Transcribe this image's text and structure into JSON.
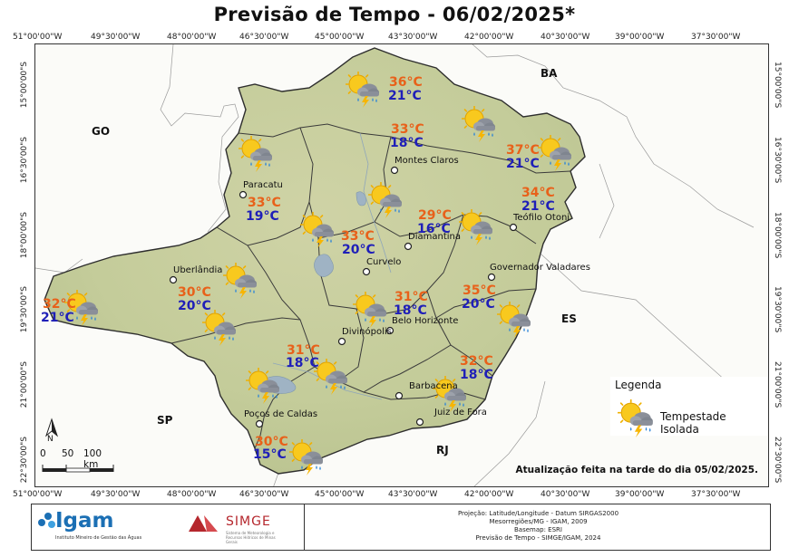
{
  "title": "Previsão de Tempo - 06/02/2025*",
  "coords": {
    "lon": [
      "51°00'00\"W",
      "49°30'00\"W",
      "48°00'00\"W",
      "46°30'00\"W",
      "45°00'00\"W",
      "43°30'00\"W",
      "42°00'00\"W",
      "40°30'00\"W",
      "39°00'00\"W",
      "37°30'00\"W"
    ],
    "lat": [
      "15°00'00\"S",
      "16°30'00\"S",
      "18°00'00\"S",
      "19°30'00\"S",
      "21°00'00\"S",
      "22°30'00\"S"
    ]
  },
  "states": {
    "go": "GO",
    "ba": "BA",
    "es": "ES",
    "sp": "SP",
    "rj": "RJ"
  },
  "cities": {
    "montes_claros": "Montes Claros",
    "paracatu": "Paracatu",
    "diamantina": "Diamantina",
    "teofilo_otoni": "Teófilo Otoni",
    "uberlandia": "Uberlândia",
    "curvelo": "Curvelo",
    "governador_valadares": "Governador Valadares",
    "belo_horizonte": "Belo Horizonte",
    "divinopolis": "Divinópolis",
    "barbacena": "Barbacena",
    "juiz_de_fora": "Juiz de Fora",
    "pocos_de_caldas": "Poços de Caldas"
  },
  "forecasts": [
    {
      "region": "norte",
      "max": "36°C",
      "min": "21°C",
      "icon": "isolated-storm-icon"
    },
    {
      "region": "norte-centro",
      "max": "33°C",
      "min": "18°C",
      "icon": "isolated-storm-icon"
    },
    {
      "region": "jequitinhonha-norte",
      "max": "37°C",
      "min": "21°C",
      "icon": "isolated-storm-icon"
    },
    {
      "region": "noroeste",
      "max": "33°C",
      "min": "19°C",
      "icon": "isolated-storm-icon"
    },
    {
      "region": "mucuri",
      "max": "34°C",
      "min": "21°C",
      "icon": "isolated-storm-icon"
    },
    {
      "region": "jequitinhonha",
      "max": "29°C",
      "min": "16°C",
      "icon": "isolated-storm-icon"
    },
    {
      "region": "central",
      "max": "33°C",
      "min": "20°C",
      "icon": "isolated-storm-icon"
    },
    {
      "region": "triangulo",
      "max": "30°C",
      "min": "20°C",
      "icon": "isolated-storm-icon"
    },
    {
      "region": "triangulo-oeste",
      "max": "32°C",
      "min": "21°C",
      "icon": "isolated-storm-icon"
    },
    {
      "region": "metropolitana",
      "max": "31°C",
      "min": "18°C",
      "icon": "isolated-storm-icon"
    },
    {
      "region": "vale-rio-doce",
      "max": "35°C",
      "min": "20°C",
      "icon": "isolated-storm-icon"
    },
    {
      "region": "oeste",
      "max": "31°C",
      "min": "18°C",
      "icon": "isolated-storm-icon"
    },
    {
      "region": "zona-da-mata",
      "max": "32°C",
      "min": "18°C",
      "icon": "isolated-storm-icon"
    },
    {
      "region": "sul",
      "max": "30°C",
      "min": "15°C",
      "icon": "isolated-storm-icon"
    }
  ],
  "legend": {
    "title": "Legenda",
    "item": "Tempestade Isolada",
    "icon": "isolated-storm-icon"
  },
  "scale": {
    "ticks": [
      "0",
      "50",
      "100 km"
    ],
    "north": "N"
  },
  "update_note": "Atualização feita na tarde do dia 05/02/2025.",
  "footer": {
    "igam": "Igam",
    "igam_sub": "Instituto Mineiro de Gestão das Águas",
    "simge": "SIMGE",
    "simge_sub": "Sistema de Meteorologia e Recursos Hídricos de Minas Gerais",
    "notes": [
      "Projeção: Latitude/Longitude - Datum SIRGAS2000",
      "Mesorregiões/MG - IGAM, 2009",
      "Basemap: ESRI",
      "Previsão de Tempo - SIMGE/IGAM, 2024"
    ]
  },
  "colors": {
    "max_temp": "#e8611a",
    "min_temp": "#1f1fb8",
    "terrain": "#c9d0a4",
    "border": "#2d2d2d"
  }
}
